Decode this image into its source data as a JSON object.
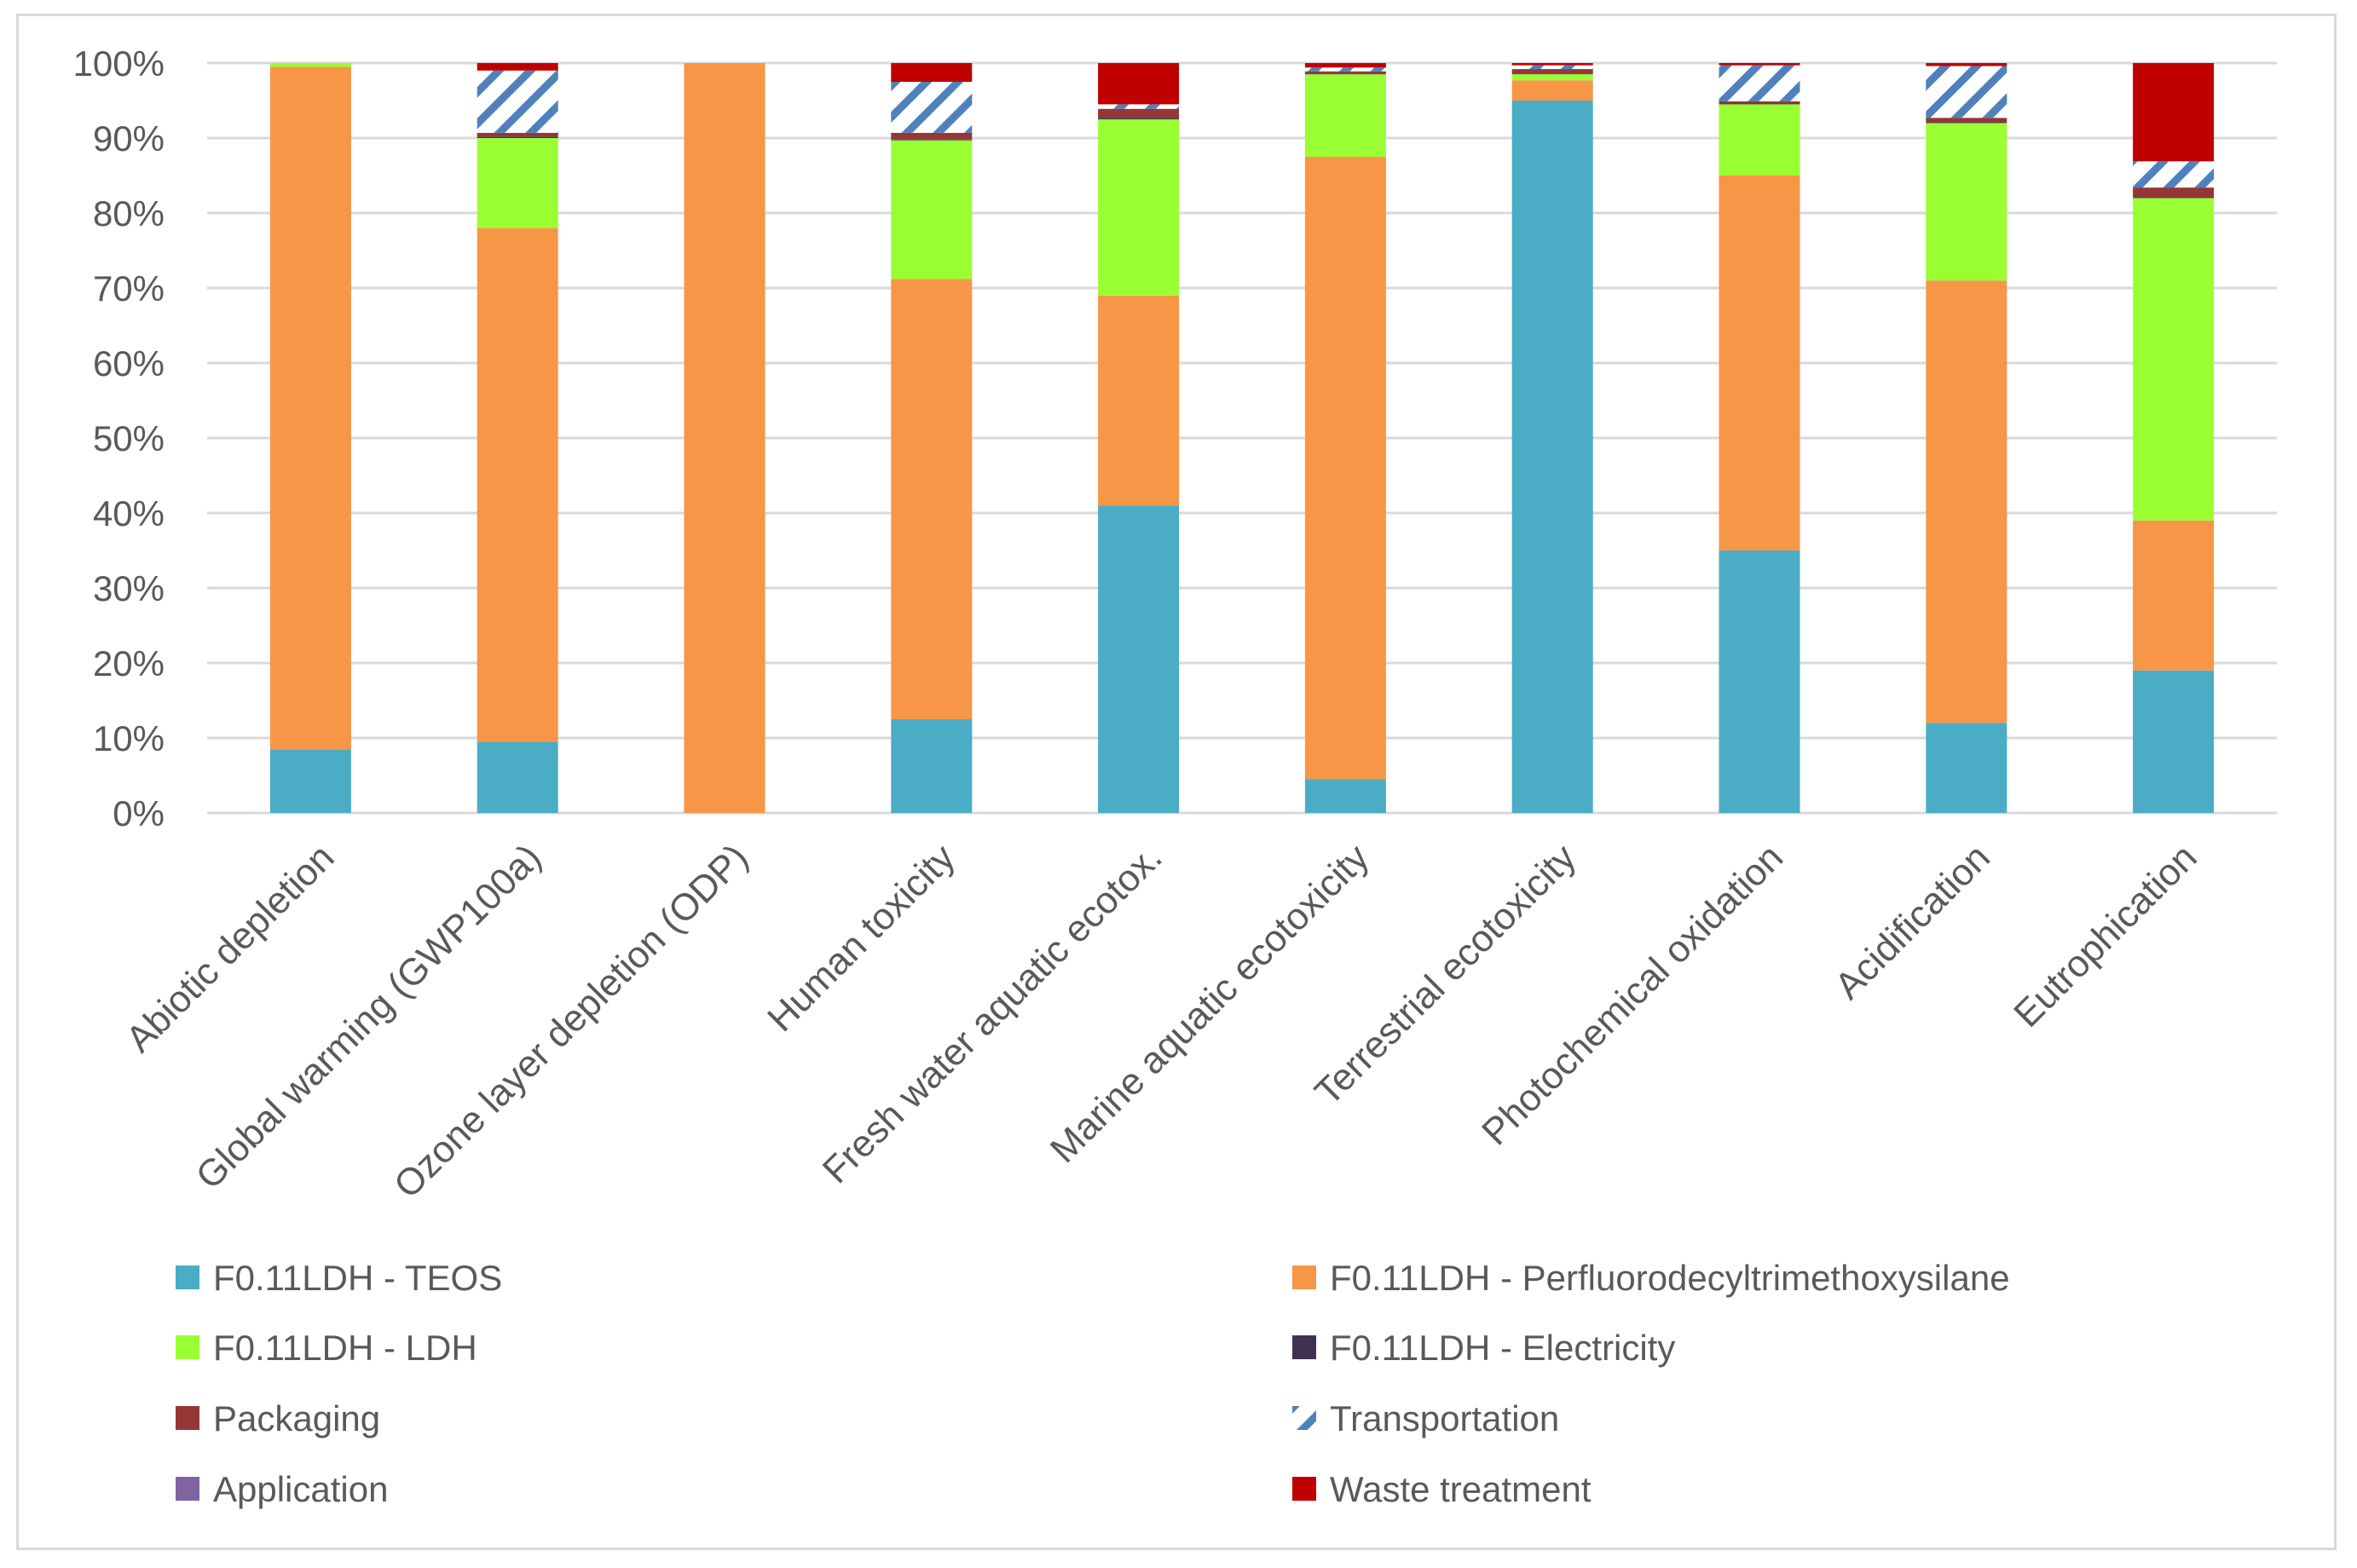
{
  "chart_data": {
    "type": "bar",
    "stacked": true,
    "percent": true,
    "title": "",
    "xlabel": "",
    "ylabel": "",
    "ylim": [
      0,
      100
    ],
    "yticks": [
      "0%",
      "10%",
      "20%",
      "30%",
      "40%",
      "50%",
      "60%",
      "70%",
      "80%",
      "90%",
      "100%"
    ],
    "grid": true,
    "legend_placement": "bottom",
    "categories": [
      "Abiotic depletion",
      "Global warming (GWP100a)",
      "Ozone layer depletion (ODP)",
      "Human toxicity",
      "Fresh water aquatic ecotox.",
      "Marine aquatic ecotoxicity",
      "Terrestrial ecotoxicity",
      "Photochemical oxidation",
      "Acidification",
      "Eutrophication"
    ],
    "series": [
      {
        "name": "F0.11LDH - TEOS",
        "color": "#4bacc6",
        "pattern": "solid",
        "values": [
          8.5,
          9.5,
          0,
          12.5,
          41,
          4.5,
          95,
          35,
          12,
          19
        ]
      },
      {
        "name": "F0.11LDH - Perfluorodecyltrimethoxysilane",
        "color": "#f79646",
        "pattern": "solid",
        "values": [
          91,
          68.5,
          100,
          58.7,
          28,
          83,
          2.7,
          50,
          59,
          20
        ]
      },
      {
        "name": "F0.11LDH - LDH",
        "color": "#99ff33",
        "pattern": "solid",
        "values": [
          0.5,
          12,
          0,
          18.5,
          23.5,
          11,
          0.8,
          9.5,
          21,
          43
        ]
      },
      {
        "name": "F0.11LDH - Electricity",
        "color": "#403151",
        "pattern": "solid",
        "values": [
          0,
          0.2,
          0,
          0.1,
          0.2,
          0.1,
          0.1,
          0.1,
          0.1,
          0.1
        ]
      },
      {
        "name": "Packaging",
        "color": "#953735",
        "pattern": "solid",
        "values": [
          0,
          0.5,
          0,
          0.9,
          1.2,
          0.3,
          0.6,
          0.3,
          0.6,
          1.3
        ]
      },
      {
        "name": "Transportation",
        "color": "#4f81bd",
        "pattern": "hatch",
        "values": [
          0,
          8.3,
          0,
          6.8,
          0.6,
          0.5,
          0.5,
          4.8,
          6.9,
          3.5
        ]
      },
      {
        "name": "Application",
        "color": "#8064a2",
        "pattern": "solid",
        "values": [
          0,
          0,
          0,
          0,
          0,
          0,
          0,
          0,
          0,
          0
        ]
      },
      {
        "name": "Waste treatment",
        "color": "#c00000",
        "pattern": "solid",
        "values": [
          0,
          1,
          0,
          2.5,
          5.5,
          0.6,
          0.3,
          0.3,
          0.4,
          13.1
        ]
      }
    ]
  }
}
